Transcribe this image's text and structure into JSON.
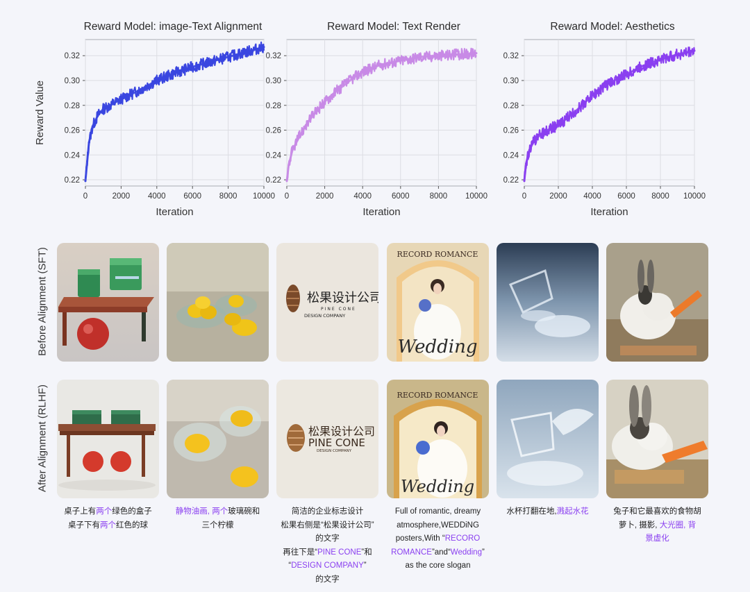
{
  "chart_data": [
    {
      "type": "line",
      "title": "Reward Model: image-Text Alignment",
      "xlabel": "Iteration",
      "ylabel": "Reward Value",
      "xlim": [
        0,
        10000
      ],
      "ylim": [
        0.215,
        0.333
      ],
      "xticks": [
        "0",
        "2000",
        "4000",
        "6000",
        "8000",
        "10000"
      ],
      "yticks": [
        "0.22",
        "0.24",
        "0.26",
        "0.28",
        "0.30",
        "0.32"
      ],
      "grid": true,
      "color": "#3a46e0",
      "series": [
        {
          "x": [
            0,
            100,
            200,
            400,
            700,
            1000,
            1500,
            2000,
            3000,
            4000,
            5000,
            6000,
            7000,
            8000,
            9000,
            10000
          ],
          "values": [
            0.219,
            0.235,
            0.25,
            0.263,
            0.272,
            0.277,
            0.281,
            0.285,
            0.292,
            0.3,
            0.306,
            0.311,
            0.315,
            0.319,
            0.323,
            0.327
          ]
        }
      ]
    },
    {
      "type": "line",
      "title": "Reward Model: Text Render",
      "xlabel": "Iteration",
      "xlim": [
        0,
        10000
      ],
      "ylim": [
        0.215,
        0.333
      ],
      "xticks": [
        "0",
        "2000",
        "4000",
        "6000",
        "8000",
        "10000"
      ],
      "yticks": [
        "0.22",
        "0.24",
        "0.26",
        "0.28",
        "0.30",
        "0.32"
      ],
      "grid": true,
      "color": "#c88ae6",
      "series": [
        {
          "x": [
            0,
            100,
            300,
            600,
            1000,
            1500,
            2000,
            2500,
            3000,
            3500,
            4000,
            5000,
            6000,
            7000,
            8000,
            9000,
            10000
          ],
          "values": [
            0.219,
            0.232,
            0.244,
            0.253,
            0.264,
            0.274,
            0.283,
            0.29,
            0.296,
            0.302,
            0.307,
            0.313,
            0.316,
            0.319,
            0.32,
            0.321,
            0.322
          ]
        }
      ]
    },
    {
      "type": "line",
      "title": "Reward Model: Aesthetics",
      "xlabel": "Iteration",
      "xlim": [
        0,
        10000
      ],
      "ylim": [
        0.215,
        0.333
      ],
      "xticks": [
        "0",
        "2000",
        "4000",
        "6000",
        "8000",
        "10000"
      ],
      "yticks": [
        "0.22",
        "0.24",
        "0.26",
        "0.28",
        "0.30",
        "0.32"
      ],
      "grid": true,
      "color": "#8a3ff0",
      "series": [
        {
          "x": [
            0,
            100,
            300,
            600,
            1000,
            1500,
            2000,
            3000,
            4000,
            5000,
            6000,
            7000,
            8000,
            9000,
            10000
          ],
          "values": [
            0.219,
            0.233,
            0.244,
            0.252,
            0.257,
            0.261,
            0.264,
            0.275,
            0.288,
            0.298,
            0.305,
            0.312,
            0.317,
            0.321,
            0.324
          ]
        }
      ]
    }
  ],
  "rows": {
    "before_label": "Before Alignment (SFT)",
    "after_label": "After Alignment (RLHF)"
  },
  "images": {
    "logo_cn": "松果设计公司",
    "logo_pine_before": "PINE CONE",
    "logo_company_before": "DESIGN COMPANY",
    "logo_pine_after": "PINE CONE",
    "logo_company_after": "DESIGN COMPANY",
    "poster_top": "RECORD ROMANCE",
    "poster_bottom": "Wedding"
  },
  "captions": [
    [
      [
        {
          "t": "桌子上有"
        },
        {
          "t": "两个",
          "hl": true
        },
        {
          "t": "绿色的盒子"
        }
      ],
      [
        {
          "t": "桌子下有"
        },
        {
          "t": "两个",
          "hl": true
        },
        {
          "t": "红色的球"
        }
      ]
    ],
    [
      [
        {
          "t": "静物油画,",
          "hl": true
        },
        {
          "t": " "
        },
        {
          "t": "两个",
          "hl": true
        },
        {
          "t": "玻璃碗和"
        }
      ],
      [
        {
          "t": "三个柠檬"
        }
      ]
    ],
    [
      [
        {
          "t": "简洁的企业标志设计"
        }
      ],
      [
        {
          "t": "松果右侧是“松果设计公司”"
        }
      ],
      [
        {
          "t": "的文字"
        }
      ],
      [
        {
          "t": "再往下是“"
        },
        {
          "t": "PINE CONE",
          "hl": true
        },
        {
          "t": "”和"
        }
      ],
      [
        {
          "t": "“"
        },
        {
          "t": "DESIGN COMPANY",
          "hl": true
        },
        {
          "t": "”"
        }
      ],
      [
        {
          "t": "的文字"
        }
      ]
    ],
    [
      [
        {
          "t": "Full of romantic, dreamy"
        }
      ],
      [
        {
          "t": "atmosphere,WEDDiNG"
        }
      ],
      [
        {
          "t": "posters,With “"
        },
        {
          "t": "RECORO",
          "hl": true
        }
      ],
      [
        {
          "t": "ROMANCE",
          "hl": true
        },
        {
          "t": "”and“"
        },
        {
          "t": "Wedding",
          "hl": true
        },
        {
          "t": "”"
        }
      ],
      [
        {
          "t": "as the core slogan"
        }
      ]
    ],
    [
      [
        {
          "t": "水杯打翻在地,"
        },
        {
          "t": "溅起水花",
          "hl": true
        }
      ]
    ],
    [
      [
        {
          "t": "兔子和它最喜欢的食物胡"
        }
      ],
      [
        {
          "t": "萝卜, 摄影, "
        },
        {
          "t": "大光圈, 背",
          "hl": true
        }
      ],
      [
        {
          "t": "景虚化",
          "hl": true
        }
      ]
    ]
  ]
}
